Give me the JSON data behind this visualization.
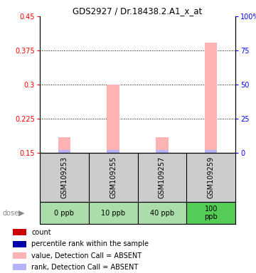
{
  "title": "GDS2927 / Dr.18438.2.A1_x_at",
  "samples": [
    "GSM109253",
    "GSM109255",
    "GSM109257",
    "GSM109259"
  ],
  "doses": [
    "0 ppb",
    "10 ppb",
    "40 ppb",
    "100\nppb"
  ],
  "dose_colors": [
    "#aaddaa",
    "#aaddaa",
    "#aaddaa",
    "#55cc55"
  ],
  "bar_values": [
    0.185,
    0.3,
    0.185,
    0.393
  ],
  "rank_values": [
    2,
    2,
    2,
    2
  ],
  "ylim_left": [
    0.15,
    0.45
  ],
  "ylim_right": [
    0,
    100
  ],
  "yticks_left": [
    0.15,
    0.225,
    0.3,
    0.375,
    0.45
  ],
  "yticks_right": [
    0,
    25,
    50,
    75,
    100
  ],
  "bar_color": "#ffb3b3",
  "rank_color": "#b3b3ff",
  "bg_color": "#ffffff",
  "plot_bg": "#ffffff",
  "label_bg": "#cccccc"
}
